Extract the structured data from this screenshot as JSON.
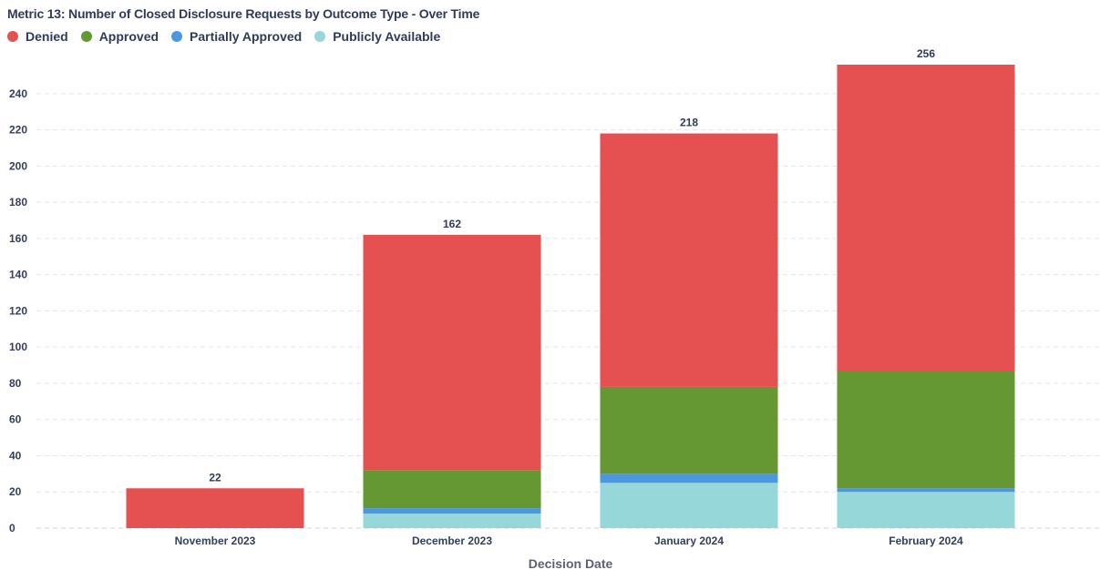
{
  "chart_data": {
    "type": "bar",
    "stacked": true,
    "title": "Metric 13: Number of Closed Disclosure Requests by Outcome Type - Over Time",
    "xlabel": "Decision Date",
    "ylabel": "",
    "ylim": [
      0,
      256
    ],
    "yticks": [
      0,
      20,
      40,
      60,
      80,
      100,
      120,
      140,
      160,
      180,
      200,
      220,
      240
    ],
    "grid": true,
    "legend_position": "top-left",
    "categories": [
      "November 2023",
      "December 2023",
      "January 2024",
      "February 2024"
    ],
    "series": [
      {
        "name": "Publicly Available",
        "color": "#96d7d9",
        "values": [
          0,
          8,
          25,
          20
        ]
      },
      {
        "name": "Partially Approved",
        "color": "#4a98e2",
        "values": [
          0,
          3,
          5,
          2
        ]
      },
      {
        "name": "Approved",
        "color": "#659732",
        "values": [
          0,
          21,
          48,
          65
        ]
      },
      {
        "name": "Denied",
        "color": "#e55151",
        "values": [
          22,
          130,
          140,
          169
        ]
      }
    ],
    "totals": [
      22,
      162,
      218,
      256
    ]
  },
  "legend": [
    {
      "label": "Denied",
      "color": "#e55151"
    },
    {
      "label": "Approved",
      "color": "#659732"
    },
    {
      "label": "Partially Approved",
      "color": "#4a98e2"
    },
    {
      "label": "Publicly Available",
      "color": "#96d7d9"
    }
  ]
}
